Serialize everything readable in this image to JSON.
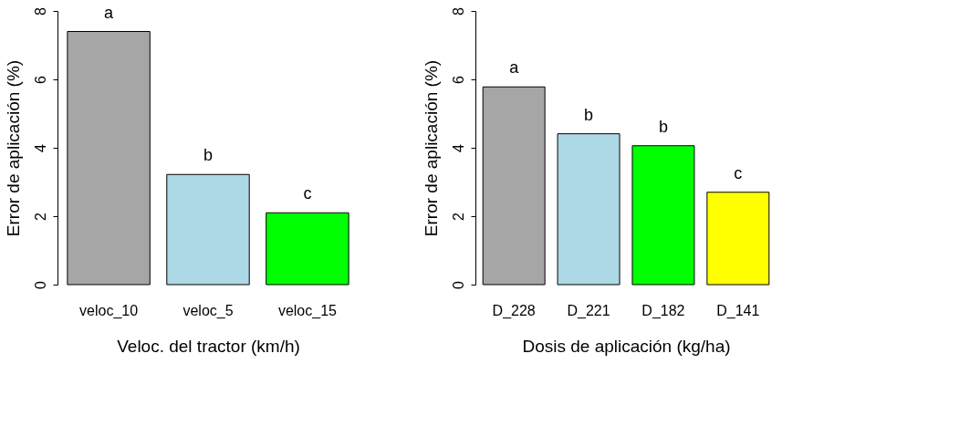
{
  "chart_data": [
    {
      "type": "bar",
      "xlabel": "Veloc. del tractor (km/h)",
      "ylabel": "Error de aplicación (%)",
      "categories": [
        "veloc_10",
        "veloc_5",
        "veloc_15"
      ],
      "values": [
        7.4,
        3.22,
        2.1
      ],
      "colors": [
        "#a6a6a6",
        "#add8e6",
        "#00ff00"
      ],
      "ylim": [
        0,
        8
      ],
      "yticks": [
        0,
        2,
        4,
        6,
        8
      ],
      "grid": false,
      "legend": false,
      "annotations": [
        {
          "text": "a",
          "x": "veloc_10",
          "y": 7.4
        },
        {
          "text": "b",
          "x": "veloc_5",
          "y": 3.22
        },
        {
          "text": "c",
          "x": "veloc_15",
          "y": 2.1
        }
      ]
    },
    {
      "type": "bar",
      "xlabel": "Dosis de aplicación (kg/ha)",
      "ylabel": "Error de aplicación (%)",
      "categories": [
        "D_228",
        "D_221",
        "D_182",
        "D_141"
      ],
      "values": [
        5.78,
        4.41,
        4.06,
        2.7
      ],
      "colors": [
        "#a6a6a6",
        "#add8e6",
        "#00ff00",
        "#ffff00"
      ],
      "ylim": [
        0,
        8
      ],
      "yticks": [
        0,
        2,
        4,
        6,
        8
      ],
      "grid": false,
      "legend": false,
      "annotations": [
        {
          "text": "a",
          "x": "D_228",
          "y": 5.78
        },
        {
          "text": "b",
          "x": "D_221",
          "y": 4.41
        },
        {
          "text": "b",
          "x": "D_182",
          "y": 4.06
        },
        {
          "text": "c",
          "x": "D_141",
          "y": 2.7
        }
      ]
    }
  ]
}
